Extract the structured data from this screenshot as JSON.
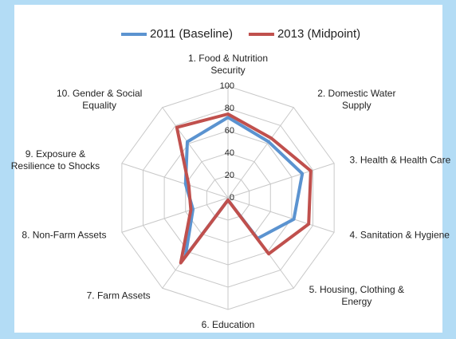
{
  "chart_data": {
    "type": "radar",
    "categories": [
      "1. Food & Nutrition Security",
      "2. Domestic Water Supply",
      "3. Health & Health Care",
      "4. Sanitation & Hygiene",
      "5. Housing, Clothing & Energy",
      "6. Education",
      "7. Farm Assets",
      "8. Non-Farm Assets",
      "9. Exposure & Resilience to Shocks",
      "10. Gender & Social Equality"
    ],
    "series": [
      {
        "name": "2011 (Baseline)",
        "color": "#5b93d0",
        "values": [
          72,
          62,
          70,
          62,
          45,
          2,
          65,
          33,
          40,
          62
        ]
      },
      {
        "name": "2013 (Midpoint)",
        "color": "#c0504d",
        "values": [
          75,
          66,
          78,
          76,
          62,
          2,
          72,
          35,
          37,
          78
        ]
      }
    ],
    "ylim": [
      0,
      100
    ],
    "yticks": [
      0,
      20,
      40,
      60,
      80,
      100
    ],
    "grid": true,
    "legend": "top"
  }
}
